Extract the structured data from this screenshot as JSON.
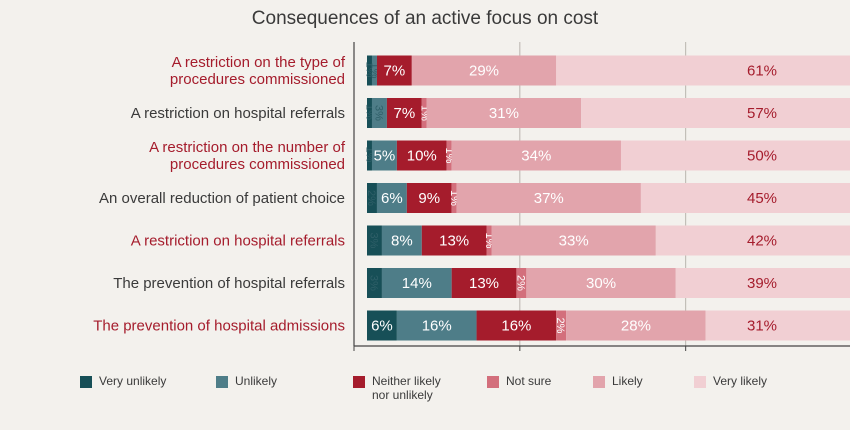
{
  "chart_data": {
    "type": "bar",
    "orientation": "horizontal",
    "stacked": true,
    "title": "Consequences of an active focus on cost",
    "xlim": [
      0,
      100
    ],
    "grid": true,
    "legend_position": "bottom",
    "categories": [
      "A restriction on the type of\nprocedures commissioned",
      "A restriction on hospital referrals",
      "A restriction on the number of\nprocedures commissioned",
      "An overall reduction of patient choice",
      "A restriction on hospital referrals",
      "The prevention of hospital referrals",
      "The prevention of hospital admissions"
    ],
    "category_highlight": [
      true,
      false,
      true,
      false,
      true,
      false,
      true
    ],
    "series": [
      {
        "name": "Very unlikely",
        "color": "#174f57",
        "values": [
          1,
          1,
          1,
          2,
          3,
          3,
          6
        ]
      },
      {
        "name": "Unlikely",
        "color": "#4e7d88",
        "values": [
          1,
          3,
          5,
          6,
          8,
          14,
          16
        ]
      },
      {
        "name": "Neither likely\nnor unlikely",
        "color": "#a51c2c",
        "values": [
          7,
          7,
          10,
          9,
          13,
          13,
          16
        ]
      },
      {
        "name": "Not sure",
        "color": "#d36f7c",
        "values": [
          0,
          1,
          1,
          1,
          1,
          2,
          2
        ]
      },
      {
        "name": "Likely",
        "color": "#e2a4ac",
        "values": [
          29,
          31,
          34,
          37,
          33,
          30,
          28
        ]
      },
      {
        "name": "Very likely",
        "color": "#f1cfd3",
        "values": [
          61,
          57,
          50,
          45,
          42,
          39,
          31
        ]
      }
    ],
    "value_labels": [
      [
        "1%",
        "1%",
        "7%",
        "",
        "29%",
        "61%"
      ],
      [
        "1%",
        "3%",
        "7%",
        "1%",
        "31%",
        "57%"
      ],
      [
        "1%",
        "5%",
        "10%",
        "1%",
        "34%",
        "50%"
      ],
      [
        "2%",
        "6%",
        "9%",
        "1%",
        "37%",
        "45%"
      ],
      [
        "3%",
        "8%",
        "13%",
        "1%",
        "33%",
        "42%"
      ],
      [
        "3%",
        "14%",
        "13%",
        "2%",
        "30%",
        "39%"
      ],
      [
        "6%",
        "16%",
        "16%",
        "2%",
        "28%",
        "31%"
      ]
    ]
  },
  "colors": {
    "highlight_label": "#a51c2c",
    "normal_label": "#3a3a3a",
    "axis": "#444444",
    "grid": "#ffffff"
  }
}
